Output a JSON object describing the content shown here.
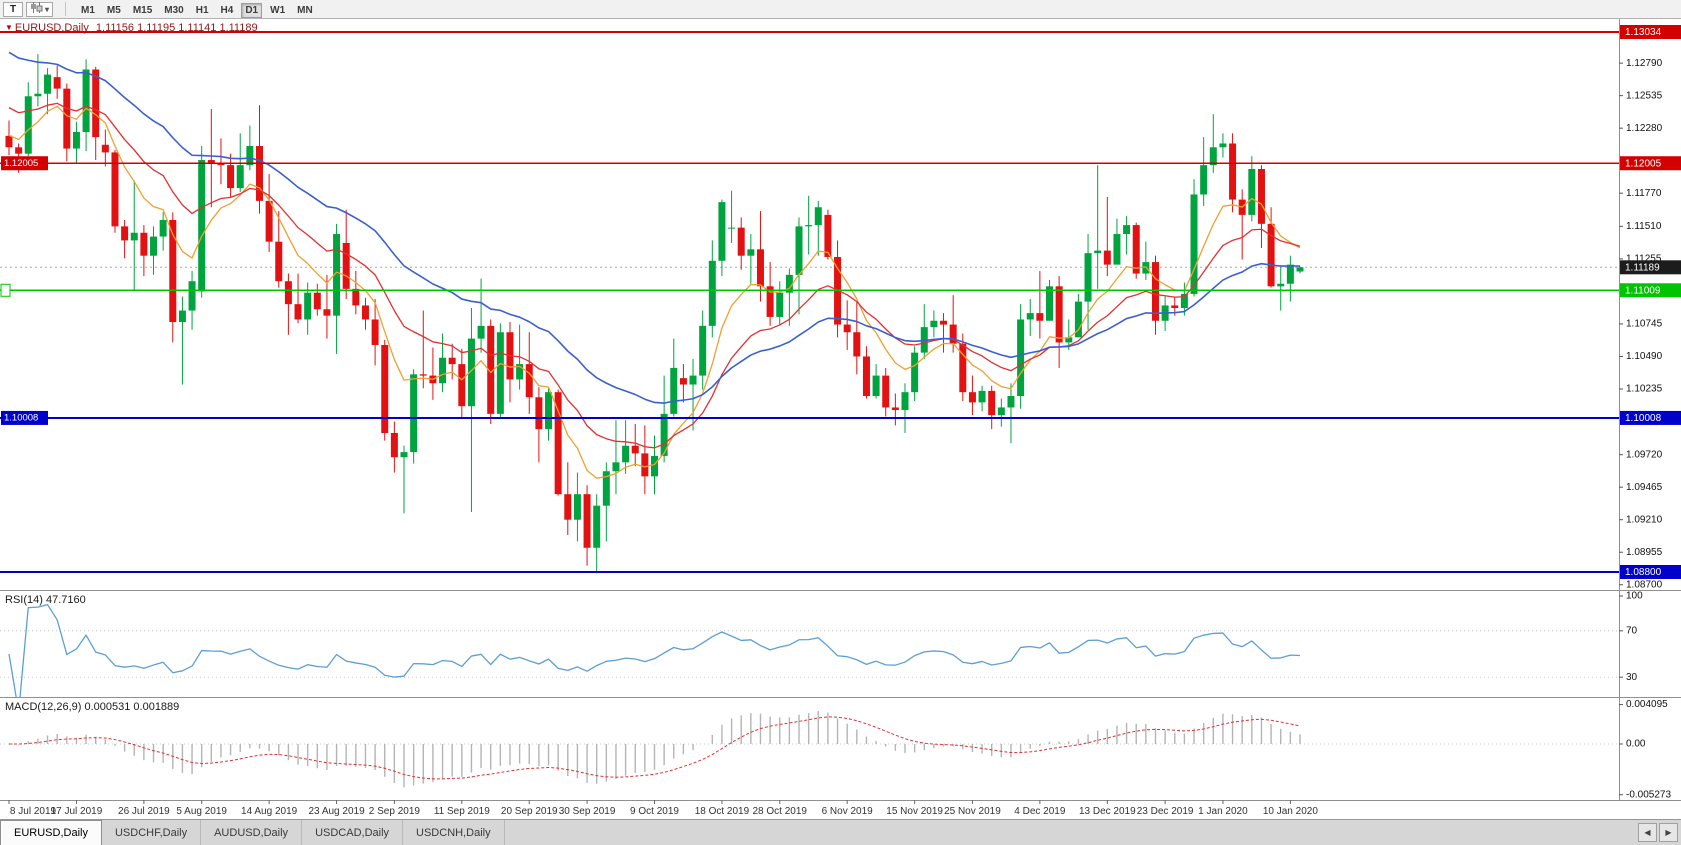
{
  "toolbar": {
    "template_button": "T",
    "timeframes": [
      "M1",
      "M5",
      "M15",
      "M30",
      "H1",
      "H4",
      "D1",
      "W1",
      "MN"
    ],
    "active_timeframe": "D1"
  },
  "chart_header": {
    "marker": "▼",
    "title": "EURUSD,Daily",
    "ohlc": "1.11156 1.11195 1.11141 1.11189"
  },
  "price_axis": {
    "ticks": [
      "1.12790",
      "1.12535",
      "1.12280",
      "1.11770",
      "1.11510",
      "1.11255",
      "1.10745",
      "1.10490",
      "1.10235",
      "1.09720",
      "1.09465",
      "1.09210",
      "1.08955",
      "1.08700"
    ]
  },
  "hlines": [
    {
      "price": 1.13034,
      "label": "1.13034",
      "color": "#d40000",
      "left_label": null
    },
    {
      "price": 1.12005,
      "label": "1.12005",
      "color": "#d40000",
      "left_label": "1.12005"
    },
    {
      "price": 1.11009,
      "label": "1.11009",
      "color": "#00c400",
      "left_label": ""
    },
    {
      "price": 1.10008,
      "label": "1.10008",
      "color": "#0000cd",
      "left_label": "1.10008"
    },
    {
      "price": 1.088,
      "label": "1.08800",
      "color": "#0000cd",
      "left_label": null
    }
  ],
  "current_price": {
    "value": 1.11189,
    "label": "1.11189",
    "box_color": "#1c1c1c"
  },
  "rsi_panel": {
    "label": "RSI(14) 47.7160",
    "period": 14,
    "value": 47.716,
    "axis_labels": [
      "100",
      "70",
      "30"
    ],
    "levels": [
      70,
      30
    ],
    "color": "#5b9fd6"
  },
  "macd_panel": {
    "label": "MACD(12,26,9) 0.000531 0.001889",
    "params": [
      12,
      26,
      9
    ],
    "value_main": 0.000531,
    "value_signal": 0.001889,
    "axis_max": 0.004095,
    "axis_min": -0.005273,
    "axis_labels": [
      "0.004095",
      "0.00",
      "-0.005273"
    ],
    "hist_color": "#b4b4b4",
    "signal_color": "#e03030"
  },
  "date_axis": {
    "labels": [
      "8 Jul 2019",
      "17 Jul 2019",
      "26 Jul 2019",
      "5 Aug 2019",
      "14 Aug 2019",
      "23 Aug 2019",
      "2 Sep 2019",
      "11 Sep 2019",
      "20 Sep 2019",
      "30 Sep 2019",
      "9 Oct 2019",
      "18 Oct 2019",
      "28 Oct 2019",
      "6 Nov 2019",
      "15 Nov 2019",
      "25 Nov 2019",
      "4 Dec 2019",
      "13 Dec 2019",
      "23 Dec 2019",
      "1 Jan 2020",
      "10 Jan 2020"
    ],
    "candle_indices": [
      0,
      7,
      14,
      20,
      27,
      34,
      40,
      47,
      54,
      60,
      67,
      74,
      80,
      87,
      94,
      100,
      107,
      114,
      120,
      126,
      133
    ]
  },
  "tabs": {
    "items": [
      "EURUSD,Daily",
      "USDCHF,Daily",
      "AUDUSD,Daily",
      "USDCAD,Daily",
      "USDCNH,Daily"
    ],
    "active_index": 0,
    "scroll_left": "◀",
    "scroll_right": "▶"
  },
  "colors": {
    "up": "#00a43f",
    "down": "#e31212",
    "rsi_line": "#5b9fd6",
    "axis_text": "#111111",
    "separator": "#909090",
    "level_dots": "#c8c8c8",
    "current_price_line": "#a8a8a8",
    "date_text": "#333333"
  },
  "chart_data": {
    "type": "candlestick",
    "symbol": "EURUSD",
    "timeframe": "Daily",
    "ohlc_display": {
      "open": "1.11156",
      "high": "1.11195",
      "low": "1.11141",
      "close": "1.11189"
    },
    "price_top": 1.13034,
    "price_bottom": 1.088,
    "moving_averages": [
      {
        "name": "ma-fast",
        "period": 8,
        "color": "#efa02f",
        "seed": 1.1225,
        "width": 1.3
      },
      {
        "name": "ma-mid",
        "period": 17,
        "color": "#e03030",
        "seed": 1.1248,
        "width": 1.3
      },
      {
        "name": "ma-slow",
        "period": 34,
        "color": "#3a5fd0",
        "seed": 1.1292,
        "width": 1.6
      }
    ],
    "candles_ohlc": [
      [
        1.1222,
        1.1234,
        1.1207,
        1.1213
      ],
      [
        1.1213,
        1.1216,
        1.1193,
        1.1208
      ],
      [
        1.1208,
        1.1264,
        1.1202,
        1.1253
      ],
      [
        1.1253,
        1.1286,
        1.1245,
        1.1255
      ],
      [
        1.1255,
        1.1275,
        1.1239,
        1.127
      ],
      [
        1.1268,
        1.1277,
        1.1251,
        1.1259
      ],
      [
        1.1259,
        1.1263,
        1.1202,
        1.1212
      ],
      [
        1.1212,
        1.1233,
        1.1201,
        1.1225
      ],
      [
        1.1225,
        1.1282,
        1.121,
        1.1274
      ],
      [
        1.1274,
        1.1276,
        1.1203,
        1.1221
      ],
      [
        1.1215,
        1.1227,
        1.1198,
        1.1209
      ],
      [
        1.1209,
        1.1211,
        1.1146,
        1.1151
      ],
      [
        1.1151,
        1.1156,
        1.1126,
        1.114
      ],
      [
        1.114,
        1.1187,
        1.1101,
        1.1146
      ],
      [
        1.1146,
        1.1152,
        1.1112,
        1.1128
      ],
      [
        1.1128,
        1.1151,
        1.1113,
        1.1143
      ],
      [
        1.1143,
        1.1162,
        1.1132,
        1.1156
      ],
      [
        1.1156,
        1.1162,
        1.106,
        1.1076
      ],
      [
        1.1076,
        1.1096,
        1.1027,
        1.1085
      ],
      [
        1.1085,
        1.1116,
        1.107,
        1.1108
      ],
      [
        1.11,
        1.1214,
        1.1095,
        1.1203
      ],
      [
        1.1203,
        1.1243,
        1.1166,
        1.12
      ],
      [
        1.12,
        1.122,
        1.1184,
        1.1199
      ],
      [
        1.1199,
        1.1208,
        1.1174,
        1.1181
      ],
      [
        1.1181,
        1.1224,
        1.1178,
        1.1199
      ],
      [
        1.1199,
        1.123,
        1.1195,
        1.1214
      ],
      [
        1.1214,
        1.1246,
        1.1161,
        1.1171
      ],
      [
        1.1171,
        1.1192,
        1.1131,
        1.1139
      ],
      [
        1.1139,
        1.1163,
        1.1103,
        1.1108
      ],
      [
        1.1108,
        1.1114,
        1.1066,
        1.109
      ],
      [
        1.109,
        1.1114,
        1.1075,
        1.1078
      ],
      [
        1.1078,
        1.1107,
        1.1066,
        1.1099
      ],
      [
        1.1099,
        1.1106,
        1.1081,
        1.1086
      ],
      [
        1.1086,
        1.1113,
        1.1063,
        1.1081
      ],
      [
        1.1081,
        1.1153,
        1.1051,
        1.1145
      ],
      [
        1.1138,
        1.1164,
        1.1094,
        1.1102
      ],
      [
        1.1102,
        1.1116,
        1.1082,
        1.1089
      ],
      [
        1.1089,
        1.1095,
        1.107,
        1.1078
      ],
      [
        1.1078,
        1.1094,
        1.1042,
        1.1058
      ],
      [
        1.1058,
        1.1062,
        1.0983,
        1.0989
      ],
      [
        1.0989,
        1.0998,
        1.0958,
        1.097
      ],
      [
        1.097,
        1.0979,
        1.0926,
        1.0974
      ],
      [
        1.0974,
        1.1039,
        1.0965,
        1.1035
      ],
      [
        1.1035,
        1.1085,
        1.1024,
        1.1034
      ],
      [
        1.1034,
        1.1056,
        1.1015,
        1.1028
      ],
      [
        1.1028,
        1.1067,
        1.1021,
        1.1048
      ],
      [
        1.1048,
        1.1059,
        1.1031,
        1.1043
      ],
      [
        1.1043,
        1.1055,
        1.1,
        1.101
      ],
      [
        1.101,
        1.1087,
        1.0927,
        1.1063
      ],
      [
        1.1063,
        1.111,
        1.1052,
        1.1073
      ],
      [
        1.1073,
        1.1078,
        1.0996,
        1.1004
      ],
      [
        1.1004,
        1.1075,
        1.1001,
        1.1068
      ],
      [
        1.1068,
        1.1076,
        1.1013,
        1.1031
      ],
      [
        1.1031,
        1.1074,
        1.1023,
        1.1043
      ],
      [
        1.1043,
        1.1068,
        1.1004,
        1.1017
      ],
      [
        1.1017,
        1.1025,
        1.0966,
        1.0992
      ],
      [
        1.0992,
        1.1024,
        1.0983,
        1.1021
      ],
      [
        1.1021,
        1.1023,
        1.094,
        1.0941
      ],
      [
        1.0941,
        1.0966,
        1.0909,
        1.0921
      ],
      [
        1.0921,
        1.0958,
        1.0904,
        1.0941
      ],
      [
        1.0941,
        1.0948,
        1.0885,
        1.0899
      ],
      [
        1.0899,
        1.0941,
        1.0879,
        1.0932
      ],
      [
        1.0932,
        1.0966,
        1.0904,
        1.0959
      ],
      [
        1.0959,
        1.0999,
        1.0941,
        1.0966
      ],
      [
        1.0966,
        1.0999,
        1.0957,
        1.0979
      ],
      [
        1.0979,
        1.0996,
        1.0963,
        1.0973
      ],
      [
        1.0973,
        1.0995,
        1.0941,
        1.0955
      ],
      [
        1.0955,
        1.0987,
        1.0941,
        1.0971
      ],
      [
        1.0971,
        1.1034,
        1.0966,
        1.1004
      ],
      [
        1.1004,
        1.1063,
        1.1002,
        1.104
      ],
      [
        1.1032,
        1.1043,
        1.1013,
        1.1027
      ],
      [
        1.1027,
        1.1047,
        1.0991,
        1.1034
      ],
      [
        1.1034,
        1.1085,
        1.1023,
        1.1073
      ],
      [
        1.1073,
        1.114,
        1.1064,
        1.1124
      ],
      [
        1.1124,
        1.1172,
        1.1112,
        1.117
      ],
      [
        1.115,
        1.1179,
        1.1138,
        1.115
      ],
      [
        1.115,
        1.1158,
        1.1117,
        1.1128
      ],
      [
        1.1128,
        1.1145,
        1.1106,
        1.1133
      ],
      [
        1.1133,
        1.1163,
        1.1092,
        1.1104
      ],
      [
        1.1104,
        1.1123,
        1.1073,
        1.108
      ],
      [
        1.108,
        1.1108,
        1.1074,
        1.1099
      ],
      [
        1.1099,
        1.1118,
        1.1073,
        1.1113
      ],
      [
        1.1113,
        1.1158,
        1.1082,
        1.1151
      ],
      [
        1.1151,
        1.1175,
        1.1129,
        1.1152
      ],
      [
        1.1152,
        1.1171,
        1.1128,
        1.1166
      ],
      [
        1.116,
        1.1164,
        1.1125,
        1.1127
      ],
      [
        1.1127,
        1.114,
        1.1064,
        1.1074
      ],
      [
        1.1074,
        1.1093,
        1.1054,
        1.1068
      ],
      [
        1.1068,
        1.1092,
        1.1035,
        1.1049
      ],
      [
        1.1049,
        1.1057,
        1.1016,
        1.1018
      ],
      [
        1.1018,
        1.1043,
        1.1016,
        1.1034
      ],
      [
        1.1034,
        1.104,
        1.1002,
        1.1009
      ],
      [
        1.1009,
        1.102,
        1.0995,
        1.1007
      ],
      [
        1.1007,
        1.1028,
        1.0989,
        1.1021
      ],
      [
        1.1021,
        1.1057,
        1.1014,
        1.1052
      ],
      [
        1.1052,
        1.109,
        1.1047,
        1.1072
      ],
      [
        1.1072,
        1.1085,
        1.1064,
        1.1077
      ],
      [
        1.1077,
        1.1083,
        1.1052,
        1.1074
      ],
      [
        1.1074,
        1.1097,
        1.1052,
        1.1059
      ],
      [
        1.1059,
        1.1067,
        1.1014,
        1.1021
      ],
      [
        1.1021,
        1.1034,
        1.1003,
        1.1013
      ],
      [
        1.1013,
        1.1026,
        1.1006,
        1.1022
      ],
      [
        1.1022,
        1.1026,
        1.0992,
        1.1003
      ],
      [
        1.1003,
        1.1016,
        1.0994,
        1.1009
      ],
      [
        1.1009,
        1.1028,
        1.0981,
        1.1018
      ],
      [
        1.1018,
        1.109,
        1.1008,
        1.1078
      ],
      [
        1.1078,
        1.1094,
        1.1065,
        1.1083
      ],
      [
        1.1083,
        1.1116,
        1.1063,
        1.1077
      ],
      [
        1.1077,
        1.1109,
        1.1077,
        1.1104
      ],
      [
        1.1104,
        1.1112,
        1.104,
        1.106
      ],
      [
        1.106,
        1.1078,
        1.1054,
        1.1064
      ],
      [
        1.1064,
        1.1098,
        1.1064,
        1.1092
      ],
      [
        1.1092,
        1.1145,
        1.107,
        1.113
      ],
      [
        1.113,
        1.1199,
        1.1102,
        1.1132
      ],
      [
        1.1132,
        1.1174,
        1.1112,
        1.1121
      ],
      [
        1.1121,
        1.1157,
        1.1121,
        1.1145
      ],
      [
        1.1145,
        1.1159,
        1.1129,
        1.1152
      ],
      [
        1.1152,
        1.1154,
        1.111,
        1.1114
      ],
      [
        1.1114,
        1.1139,
        1.1109,
        1.1123
      ],
      [
        1.1123,
        1.1128,
        1.1066,
        1.1077
      ],
      [
        1.1077,
        1.1096,
        1.1069,
        1.1089
      ],
      [
        1.1089,
        1.1096,
        1.1081,
        1.1087
      ],
      [
        1.1087,
        1.1107,
        1.1081,
        1.1098
      ],
      [
        1.1098,
        1.1188,
        1.1096,
        1.1176
      ],
      [
        1.1176,
        1.1221,
        1.1167,
        1.1199
      ],
      [
        1.1199,
        1.1239,
        1.1193,
        1.1213
      ],
      [
        1.1213,
        1.1224,
        1.1205,
        1.1216
      ],
      [
        1.1216,
        1.1224,
        1.1162,
        1.1172
      ],
      [
        1.1172,
        1.118,
        1.1125,
        1.116
      ],
      [
        1.116,
        1.1206,
        1.1155,
        1.1196
      ],
      [
        1.1196,
        1.1199,
        1.1134,
        1.1153
      ],
      [
        1.1153,
        1.1166,
        1.1103,
        1.1104
      ],
      [
        1.1104,
        1.1119,
        1.1085,
        1.1106
      ],
      [
        1.1106,
        1.1128,
        1.1092,
        1.1121
      ],
      [
        1.11156,
        1.11195,
        1.11141,
        1.11189
      ]
    ]
  }
}
